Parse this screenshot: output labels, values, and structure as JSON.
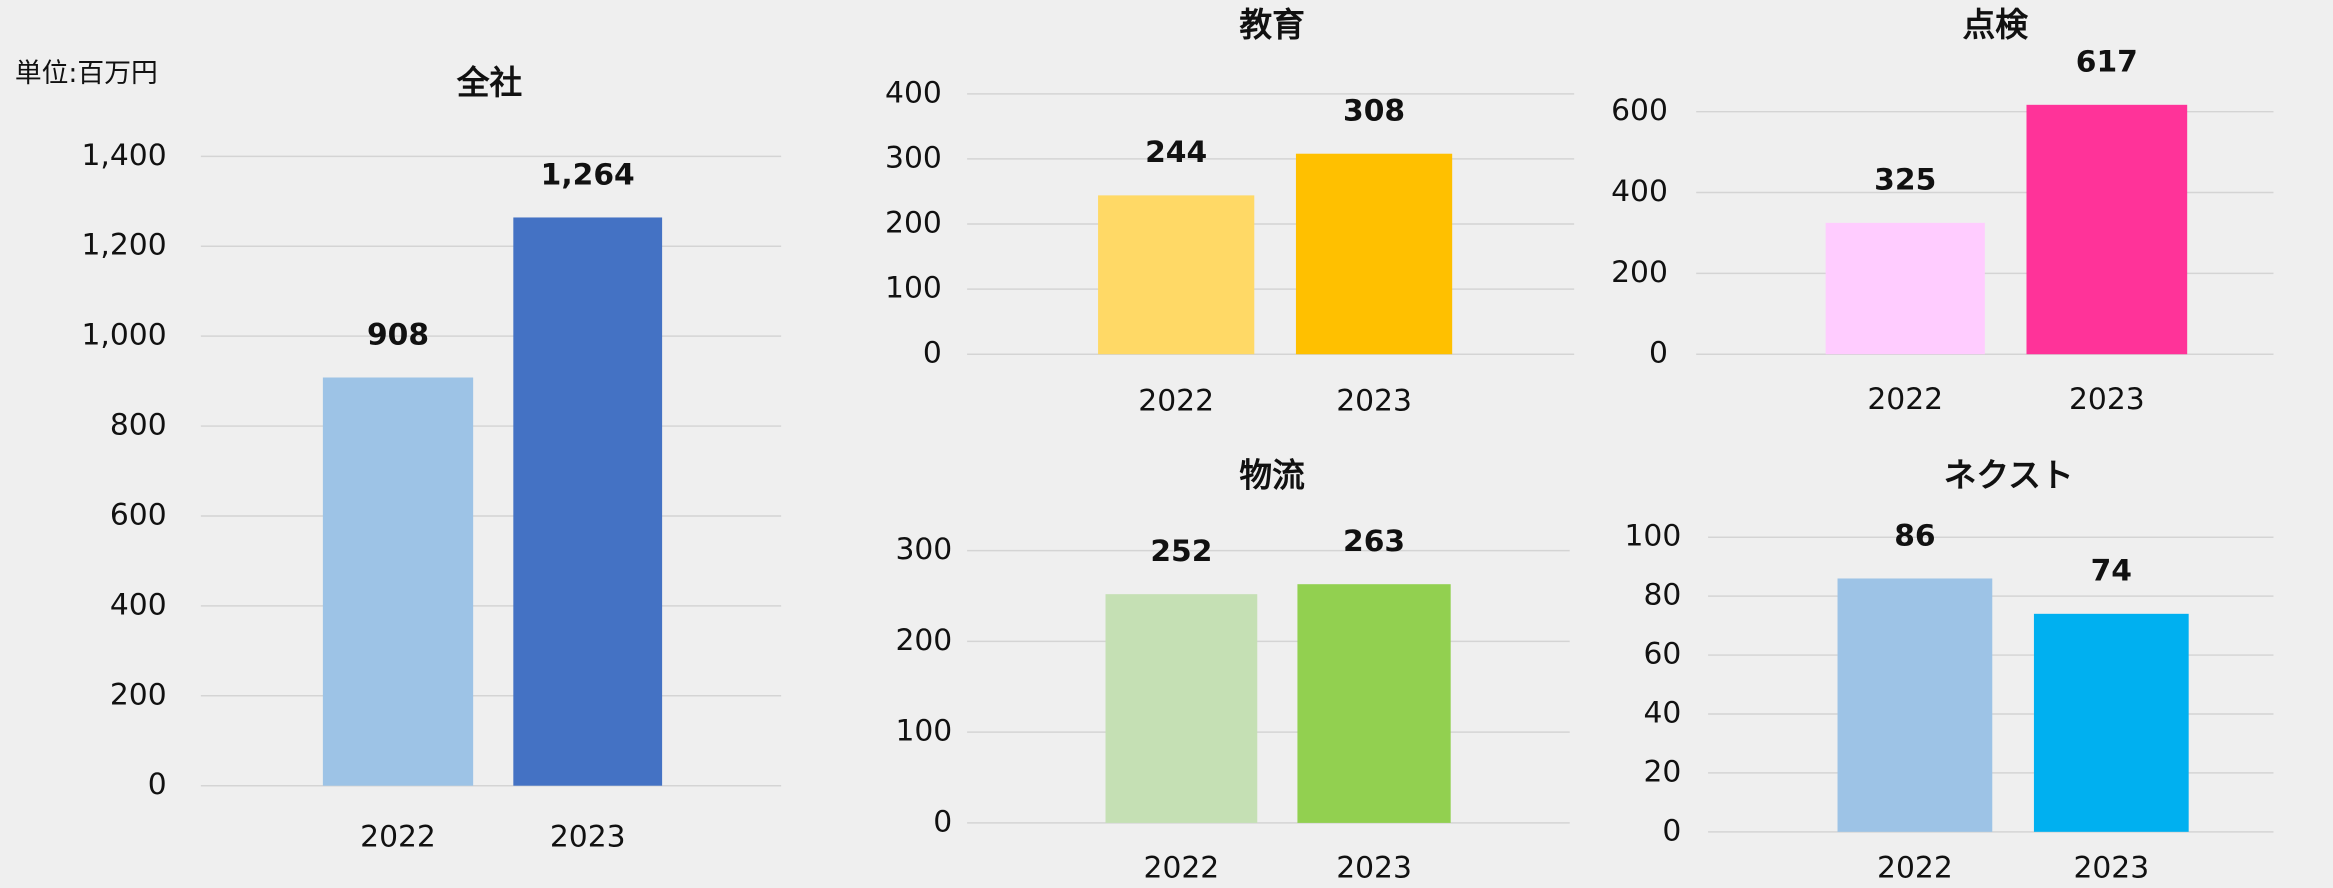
{
  "chart_data": [
    {
      "type": "bar",
      "title": "全社",
      "unit_label": "単位:百万円",
      "categories": [
        "2022",
        "2023"
      ],
      "values": [
        908,
        1264
      ],
      "value_labels": [
        "908",
        "1,264"
      ],
      "colors": [
        "#9dc3e6",
        "#4472c4"
      ],
      "ylim": [
        0,
        1400
      ],
      "yticks": [
        0,
        200,
        400,
        600,
        800,
        {
          "value": 1000,
          "label": "1,000"
        },
        {
          "value": 1200,
          "label": "1,200"
        },
        {
          "value": 1400,
          "label": "1,400"
        }
      ],
      "grid": true
    },
    {
      "type": "bar",
      "title": "教育",
      "categories": [
        "2022",
        "2023"
      ],
      "values": [
        244,
        308
      ],
      "colors": [
        "#ffd966",
        "#ffc000"
      ],
      "ylim": [
        0,
        400
      ],
      "yticks": [
        0,
        100,
        200,
        300,
        400
      ],
      "grid": true
    },
    {
      "type": "bar",
      "title": "点検",
      "categories": [
        "2022",
        "2023"
      ],
      "values": [
        325,
        617
      ],
      "colors": [
        "#ffccff",
        "#ff3399"
      ],
      "ylim": [
        0,
        600
      ],
      "yticks": [
        0,
        200,
        400,
        600
      ],
      "grid": true
    },
    {
      "type": "bar",
      "title": "物流",
      "categories": [
        "2022",
        "2023"
      ],
      "values": [
        252,
        263
      ],
      "colors": [
        "#c5e0b4",
        "#92d050"
      ],
      "ylim": [
        0,
        300
      ],
      "yticks": [
        0,
        100,
        200,
        300
      ],
      "grid": true
    },
    {
      "type": "bar",
      "title": "ネクスト",
      "categories": [
        "2022",
        "2023"
      ],
      "values": [
        86,
        74
      ],
      "colors": [
        "#9dc3e6",
        "#00b0f0"
      ],
      "ylim": [
        0,
        100
      ],
      "yticks": [
        0,
        20,
        40,
        60,
        80,
        100
      ],
      "grid": true
    }
  ]
}
